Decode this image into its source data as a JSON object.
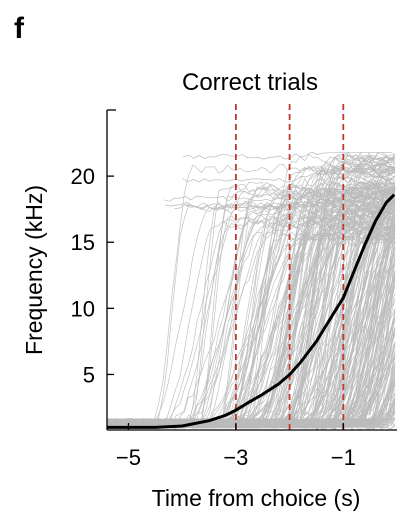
{
  "panel_label": "f",
  "chart_data": {
    "type": "line",
    "title": "Correct trials",
    "xlabel": "Time from choice (s)",
    "ylabel": "Frequency (kHz)",
    "xlim": [
      -5.4,
      0.0
    ],
    "ylim": [
      0.8,
      25.0
    ],
    "xticks": [
      -5,
      -3,
      -1
    ],
    "xtick_labels": [
      "−5",
      "−3",
      "−1"
    ],
    "yticks": [
      5,
      10,
      15,
      20
    ],
    "ytick_labels": [
      "5",
      "10",
      "15",
      "20"
    ],
    "grid": false,
    "legend": "none",
    "vertical_reference_lines": [
      -3,
      -2,
      -1
    ],
    "series": [
      {
        "role": "mean",
        "color": "#000000",
        "x": [
          -5.4,
          -5.0,
          -4.5,
          -4.0,
          -3.5,
          -3.2,
          -3.0,
          -2.8,
          -2.5,
          -2.2,
          -2.0,
          -1.8,
          -1.5,
          -1.2,
          -1.0,
          -0.8,
          -0.6,
          -0.4,
          -0.2,
          -0.05
        ],
        "y": [
          1.0,
          1.0,
          1.0,
          1.1,
          1.5,
          1.9,
          2.3,
          2.8,
          3.5,
          4.3,
          5.0,
          5.9,
          7.5,
          9.5,
          10.8,
          12.8,
          14.8,
          16.6,
          18.0,
          18.6
        ]
      }
    ],
    "individual_trials": {
      "color": "#bbbbbb",
      "count": 300,
      "start_level": 1.0,
      "end_level_range": [
        15.0,
        21.5
      ]
    }
  },
  "colors": {
    "trials": "#bbbbbb",
    "mean": "#000000",
    "reference_lines": "#c0392b",
    "axes": "#000000"
  }
}
